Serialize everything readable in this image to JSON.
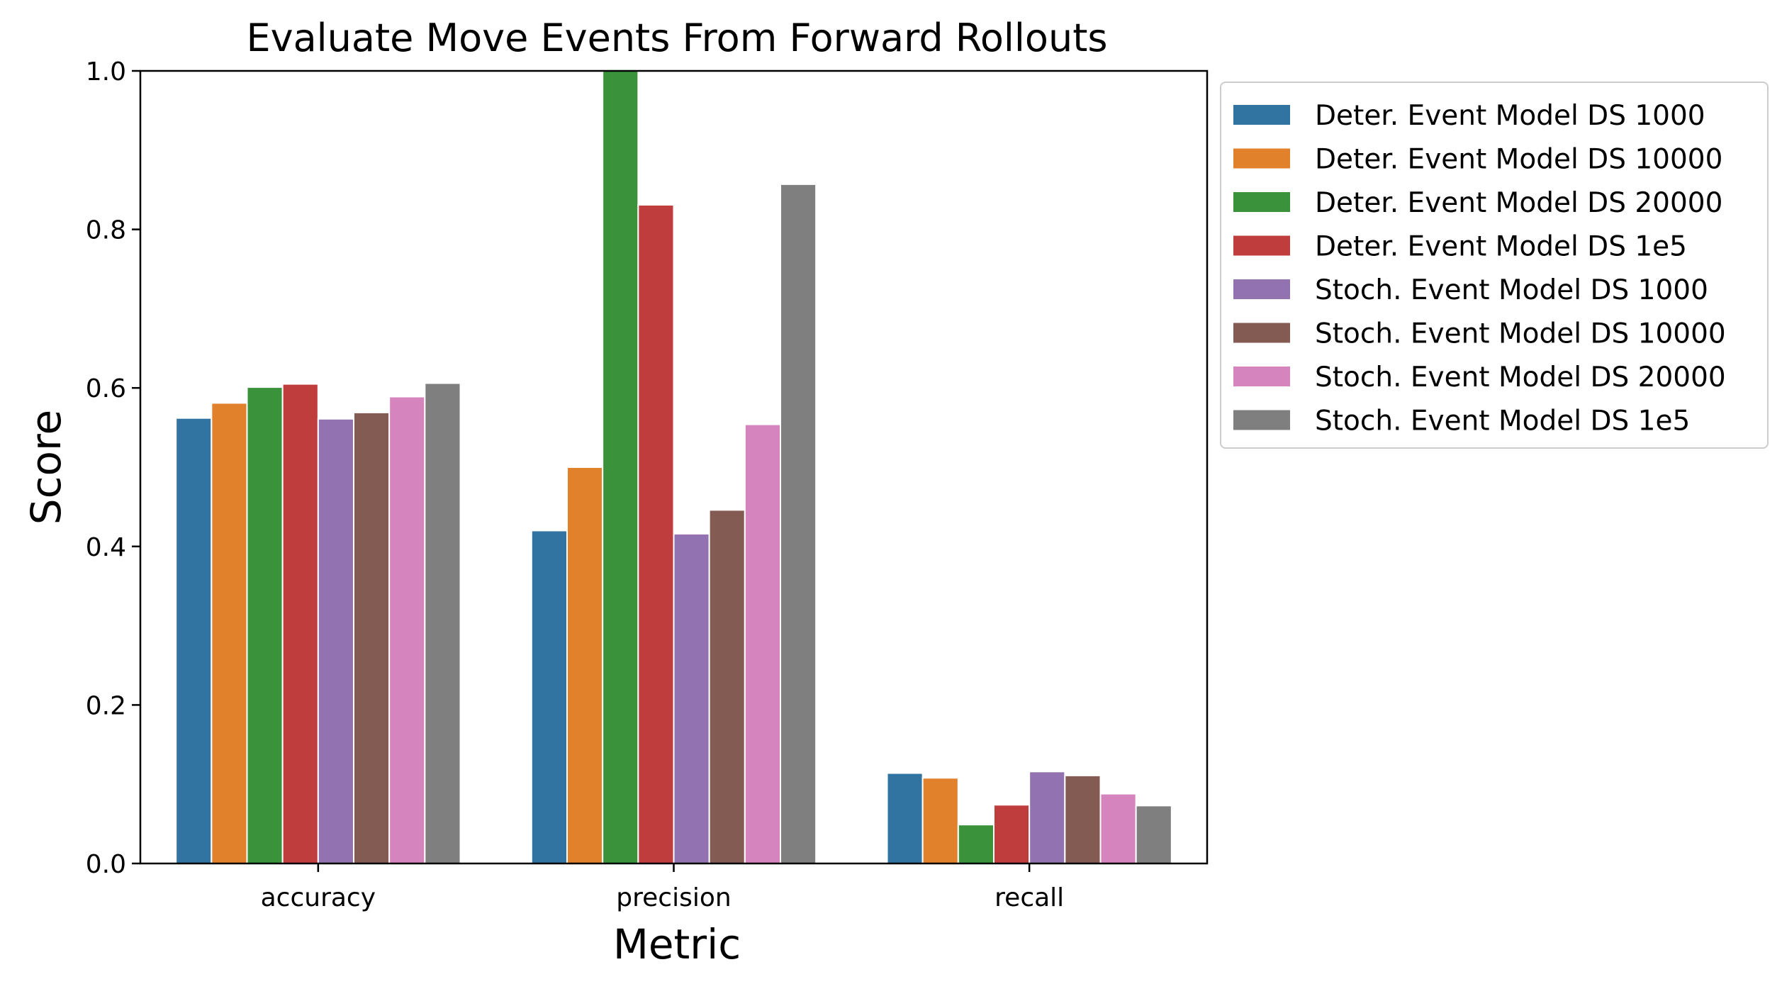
{
  "chart_data": {
    "type": "bar",
    "title": "Evaluate Move Events From Forward Rollouts",
    "xlabel": "Metric",
    "ylabel": "Score",
    "ylim": [
      0,
      1.0
    ],
    "yticks": [
      0.0,
      0.2,
      0.4,
      0.6,
      0.8,
      1.0
    ],
    "ytick_labels": [
      "0.0",
      "0.2",
      "0.4",
      "0.6",
      "0.8",
      "1.0"
    ],
    "grid": false,
    "legend_position": "outside-right-top",
    "categories": [
      "accuracy",
      "precision",
      "recall"
    ],
    "series": [
      {
        "name": "Deter. Event Model DS 1000",
        "color": "#3274a1",
        "values": [
          0.562,
          0.42,
          0.114
        ]
      },
      {
        "name": "Deter. Event Model DS 10000",
        "color": "#e1812c",
        "values": [
          0.581,
          0.5,
          0.108
        ]
      },
      {
        "name": "Deter. Event Model DS 20000",
        "color": "#3a923a",
        "values": [
          0.601,
          1.0,
          0.049
        ]
      },
      {
        "name": "Deter. Event Model DS 1e5",
        "color": "#c03d3e",
        "values": [
          0.605,
          0.831,
          0.074
        ]
      },
      {
        "name": "Stoch. Event Model DS 1000",
        "color": "#9372b2",
        "values": [
          0.561,
          0.416,
          0.116
        ]
      },
      {
        "name": "Stoch. Event Model DS 10000",
        "color": "#845b53",
        "values": [
          0.569,
          0.446,
          0.111
        ]
      },
      {
        "name": "Stoch. Event Model DS 20000",
        "color": "#d684bd",
        "values": [
          0.589,
          0.554,
          0.088
        ]
      },
      {
        "name": "Stoch. Event Model DS 1e5",
        "color": "#7f7f7f",
        "values": [
          0.606,
          0.857,
          0.073
        ]
      }
    ]
  }
}
